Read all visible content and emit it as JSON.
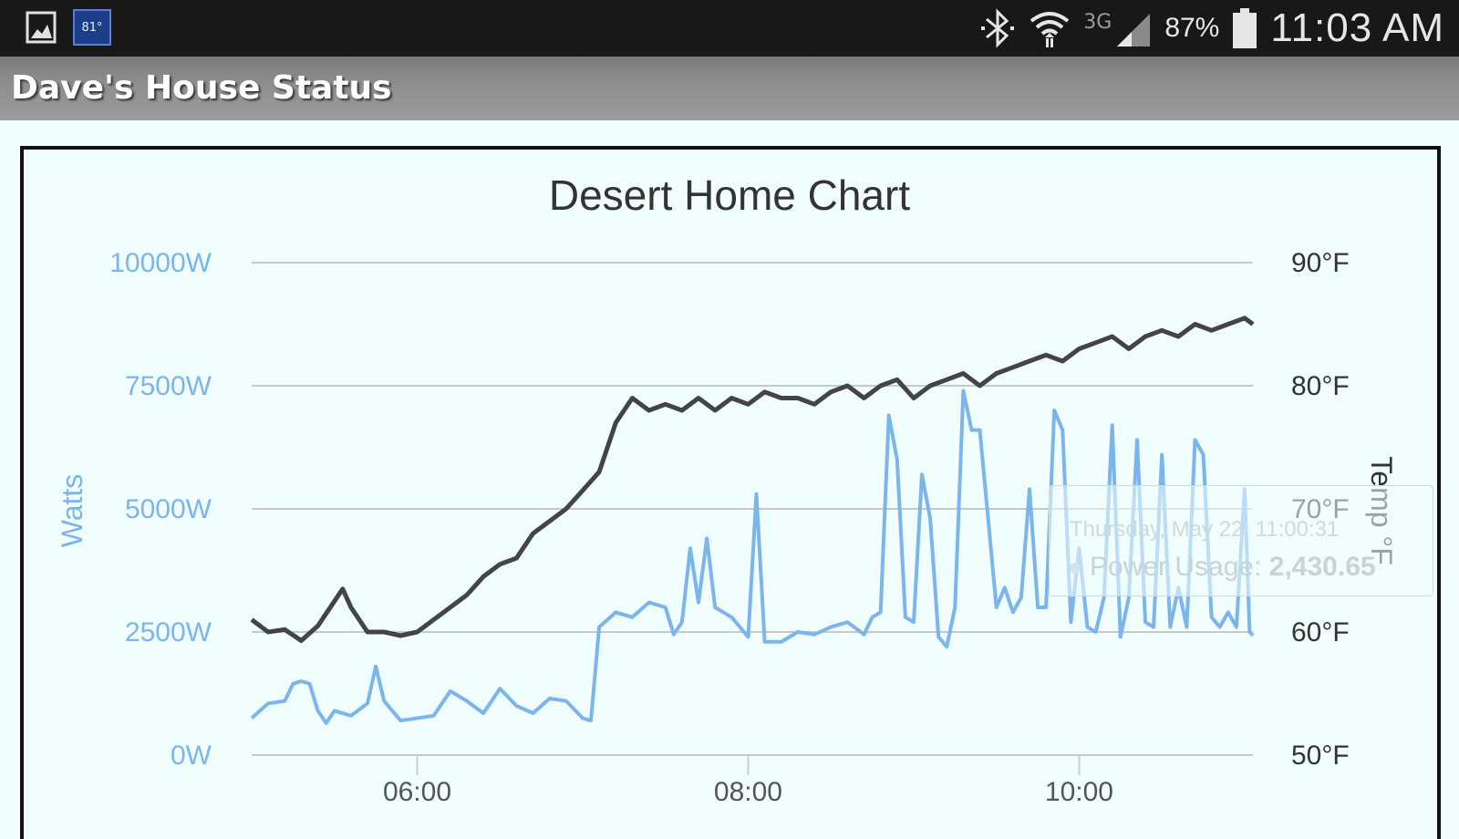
{
  "status_bar": {
    "temp_badge": "81°",
    "network_type": "3G",
    "battery_percent": "87%",
    "time": "11:03 AM",
    "icons": [
      "gallery-icon",
      "temp-badge",
      "bluetooth-icon",
      "wifi-icon",
      "signal-icon",
      "battery-icon"
    ]
  },
  "app": {
    "title": "Dave's House Status"
  },
  "chart_data": {
    "type": "line",
    "title": "Desert Home Chart",
    "y_left_label": "Watts",
    "y_right_label": "Temp °F",
    "y_left_ticks": [
      "0W",
      "2500W",
      "5000W",
      "7500W",
      "10000W"
    ],
    "y_left_range": [
      0,
      10000
    ],
    "y_right_ticks": [
      "50°F",
      "60°F",
      "70°F",
      "80°F",
      "90°F"
    ],
    "y_right_range": [
      50,
      90
    ],
    "x_ticks": [
      "06:00",
      "08:00",
      "10:00"
    ],
    "x_range_hours": [
      5.0,
      11.05
    ],
    "grid": true,
    "series": [
      {
        "axis": "left",
        "color": "#7cb5ec",
        "points": [
          [
            5.0,
            750
          ],
          [
            5.1,
            1050
          ],
          [
            5.2,
            1100
          ],
          [
            5.25,
            1450
          ],
          [
            5.3,
            1500
          ],
          [
            5.35,
            1450
          ],
          [
            5.4,
            900
          ],
          [
            5.45,
            650
          ],
          [
            5.5,
            900
          ],
          [
            5.6,
            800
          ],
          [
            5.7,
            1050
          ],
          [
            5.75,
            1800
          ],
          [
            5.8,
            1100
          ],
          [
            5.9,
            700
          ],
          [
            6.0,
            750
          ],
          [
            6.1,
            800
          ],
          [
            6.2,
            1300
          ],
          [
            6.3,
            1100
          ],
          [
            6.4,
            850
          ],
          [
            6.5,
            1350
          ],
          [
            6.6,
            1000
          ],
          [
            6.7,
            850
          ],
          [
            6.8,
            1150
          ],
          [
            6.9,
            1100
          ],
          [
            7.0,
            750
          ],
          [
            7.05,
            700
          ],
          [
            7.1,
            2600
          ],
          [
            7.2,
            2900
          ],
          [
            7.3,
            2800
          ],
          [
            7.4,
            3100
          ],
          [
            7.5,
            3000
          ],
          [
            7.55,
            2450
          ],
          [
            7.6,
            2700
          ],
          [
            7.65,
            4200
          ],
          [
            7.7,
            3100
          ],
          [
            7.75,
            4400
          ],
          [
            7.8,
            3000
          ],
          [
            7.9,
            2800
          ],
          [
            8.0,
            2400
          ],
          [
            8.05,
            5300
          ],
          [
            8.1,
            2300
          ],
          [
            8.2,
            2300
          ],
          [
            8.3,
            2500
          ],
          [
            8.4,
            2450
          ],
          [
            8.5,
            2600
          ],
          [
            8.6,
            2700
          ],
          [
            8.7,
            2450
          ],
          [
            8.75,
            2800
          ],
          [
            8.8,
            2900
          ],
          [
            8.85,
            6900
          ],
          [
            8.9,
            6000
          ],
          [
            8.95,
            2800
          ],
          [
            9.0,
            2700
          ],
          [
            9.05,
            5700
          ],
          [
            9.1,
            4800
          ],
          [
            9.15,
            2400
          ],
          [
            9.2,
            2200
          ],
          [
            9.25,
            3000
          ],
          [
            9.3,
            7400
          ],
          [
            9.35,
            6600
          ],
          [
            9.4,
            6600
          ],
          [
            9.5,
            3000
          ],
          [
            9.55,
            3400
          ],
          [
            9.6,
            2900
          ],
          [
            9.65,
            3200
          ],
          [
            9.7,
            5400
          ],
          [
            9.75,
            3000
          ],
          [
            9.8,
            3000
          ],
          [
            9.85,
            7000
          ],
          [
            9.9,
            6600
          ],
          [
            9.95,
            2700
          ],
          [
            10.0,
            4200
          ],
          [
            10.05,
            2600
          ],
          [
            10.1,
            2500
          ],
          [
            10.15,
            3200
          ],
          [
            10.2,
            6700
          ],
          [
            10.25,
            2400
          ],
          [
            10.3,
            3200
          ],
          [
            10.35,
            6400
          ],
          [
            10.4,
            2700
          ],
          [
            10.45,
            2600
          ],
          [
            10.5,
            6100
          ],
          [
            10.55,
            2600
          ],
          [
            10.6,
            3400
          ],
          [
            10.65,
            2600
          ],
          [
            10.7,
            6400
          ],
          [
            10.75,
            6100
          ],
          [
            10.8,
            2800
          ],
          [
            10.85,
            2600
          ],
          [
            10.9,
            2900
          ],
          [
            10.95,
            2600
          ],
          [
            11.0,
            5400
          ],
          [
            11.03,
            2500
          ],
          [
            11.05,
            2430
          ]
        ]
      },
      {
        "axis": "right",
        "color": "#434348",
        "points": [
          [
            5.0,
            61.0
          ],
          [
            5.1,
            60.0
          ],
          [
            5.2,
            60.2
          ],
          [
            5.3,
            59.3
          ],
          [
            5.4,
            60.5
          ],
          [
            5.5,
            62.5
          ],
          [
            5.55,
            63.5
          ],
          [
            5.6,
            62.0
          ],
          [
            5.7,
            60.0
          ],
          [
            5.8,
            60.0
          ],
          [
            5.9,
            59.7
          ],
          [
            6.0,
            60.0
          ],
          [
            6.1,
            61.0
          ],
          [
            6.2,
            62.0
          ],
          [
            6.3,
            63.0
          ],
          [
            6.4,
            64.5
          ],
          [
            6.5,
            65.5
          ],
          [
            6.6,
            66.0
          ],
          [
            6.7,
            68.0
          ],
          [
            6.8,
            69.0
          ],
          [
            6.9,
            70.0
          ],
          [
            7.0,
            71.5
          ],
          [
            7.1,
            73.0
          ],
          [
            7.2,
            77.0
          ],
          [
            7.3,
            79.0
          ],
          [
            7.4,
            78.0
          ],
          [
            7.5,
            78.5
          ],
          [
            7.6,
            78.0
          ],
          [
            7.7,
            79.0
          ],
          [
            7.8,
            78.0
          ],
          [
            7.9,
            79.0
          ],
          [
            8.0,
            78.5
          ],
          [
            8.1,
            79.5
          ],
          [
            8.2,
            79.0
          ],
          [
            8.3,
            79.0
          ],
          [
            8.4,
            78.5
          ],
          [
            8.5,
            79.5
          ],
          [
            8.6,
            80.0
          ],
          [
            8.7,
            79.0
          ],
          [
            8.8,
            80.0
          ],
          [
            8.9,
            80.5
          ],
          [
            9.0,
            79.0
          ],
          [
            9.1,
            80.0
          ],
          [
            9.2,
            80.5
          ],
          [
            9.3,
            81.0
          ],
          [
            9.4,
            80.0
          ],
          [
            9.5,
            81.0
          ],
          [
            9.6,
            81.5
          ],
          [
            9.7,
            82.0
          ],
          [
            9.8,
            82.5
          ],
          [
            9.9,
            82.0
          ],
          [
            10.0,
            83.0
          ],
          [
            10.1,
            83.5
          ],
          [
            10.2,
            84.0
          ],
          [
            10.3,
            83.0
          ],
          [
            10.4,
            84.0
          ],
          [
            10.5,
            84.5
          ],
          [
            10.6,
            84.0
          ],
          [
            10.7,
            85.0
          ],
          [
            10.8,
            84.5
          ],
          [
            10.9,
            85.0
          ],
          [
            11.0,
            85.5
          ],
          [
            11.05,
            85.0
          ]
        ]
      }
    ],
    "tooltip": {
      "date": "Thursday, May 22, 11:00:31",
      "series_label": "Power Usage:",
      "value": "2,430.65"
    }
  }
}
